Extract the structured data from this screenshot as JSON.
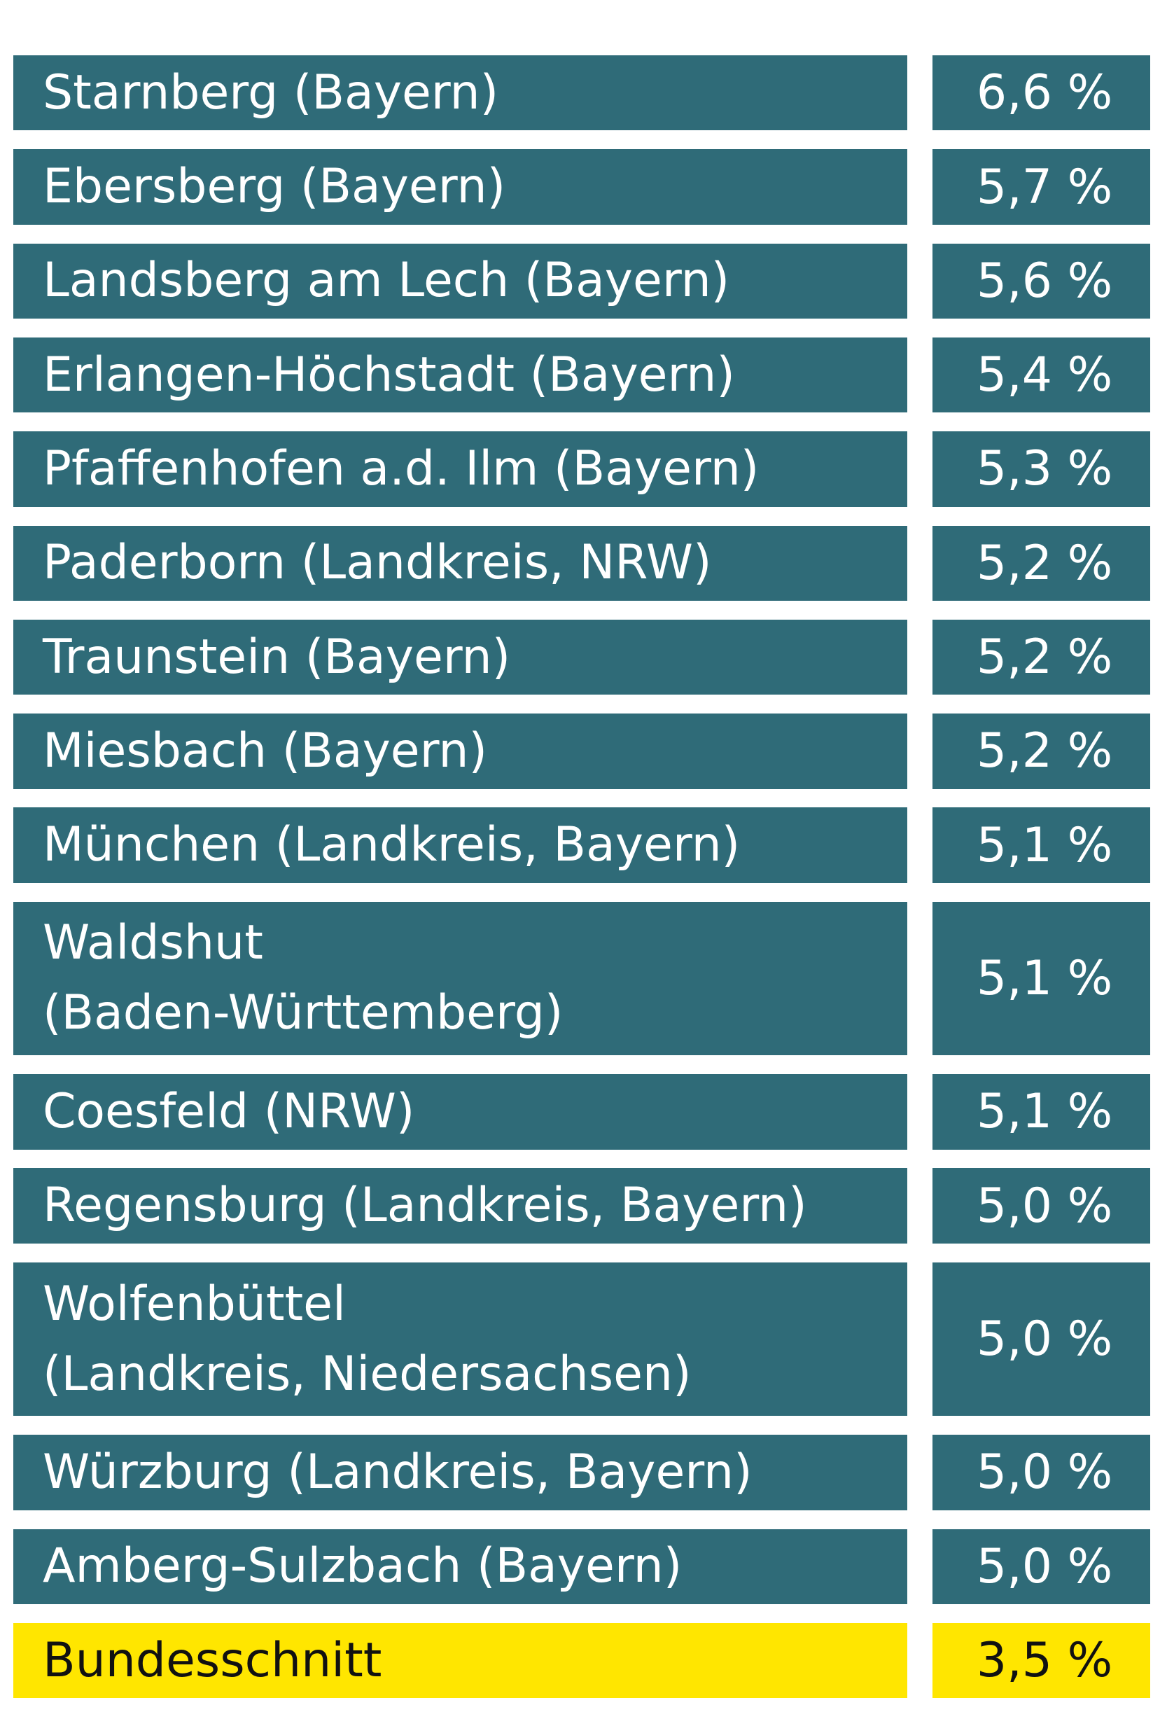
{
  "table": {
    "rows": [
      {
        "label": [
          "Starnberg (Bayern)"
        ],
        "value": "6,6 %",
        "color": "#2f6b78"
      },
      {
        "label": [
          "Ebersberg (Bayern)"
        ],
        "value": "5,7 %",
        "color": "#2f6b78"
      },
      {
        "label": [
          "Landsberg am Lech (Bayern)"
        ],
        "value": "5,6 %",
        "color": "#2f6b78"
      },
      {
        "label": [
          "Erlangen-Höchstadt (Bayern)"
        ],
        "value": "5,4 %",
        "color": "#2f6b78"
      },
      {
        "label": [
          "Pfaffenhofen a.d. Ilm (Bayern)"
        ],
        "value": "5,3 %",
        "color": "#2f6b78"
      },
      {
        "label": [
          "Paderborn (Landkreis, NRW)"
        ],
        "value": "5,2 %",
        "color": "#2f6b78"
      },
      {
        "label": [
          "Traunstein (Bayern)"
        ],
        "value": "5,2 %",
        "color": "#2f6b78"
      },
      {
        "label": [
          "Miesbach (Bayern)"
        ],
        "value": "5,2 %",
        "color": "#2f6b78"
      },
      {
        "label": [
          "München (Landkreis, Bayern)"
        ],
        "value": "5,1 %",
        "color": "#2f6b78"
      },
      {
        "label": [
          "Waldshut",
          "(Baden-Württemberg)"
        ],
        "value": "5,1 %",
        "color": "#2f6b78"
      },
      {
        "label": [
          "Coesfeld (NRW)"
        ],
        "value": "5,1 %",
        "color": "#2f6b78"
      },
      {
        "label": [
          "Regensburg (Landkreis, Bayern)"
        ],
        "value": "5,0 %",
        "color": "#2f6b78"
      },
      {
        "label": [
          "Wolfenbüttel",
          "(Landkreis, Niedersachsen)"
        ],
        "value": "5,0 %",
        "color": "#2f6b78"
      },
      {
        "label": [
          "Würzburg (Landkreis, Bayern)"
        ],
        "value": "5,0 %",
        "color": "#2f6b78"
      },
      {
        "label": [
          "Amberg-Sulzbach (Bayern)"
        ],
        "value": "5,0 %",
        "color": "#2f6b78"
      },
      {
        "label": [
          "Bundesschnitt"
        ],
        "value": "3,5 %",
        "color": "#ffe600"
      }
    ]
  }
}
